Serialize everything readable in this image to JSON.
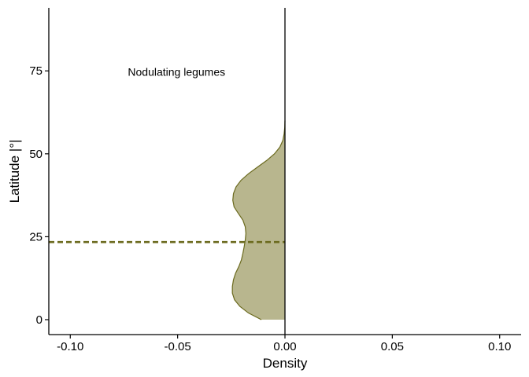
{
  "chart_data": {
    "type": "area",
    "orientation": "vertical-density",
    "xlabel": "Density",
    "ylabel": "Latitude |°|",
    "xlim": [
      -0.11,
      0.11
    ],
    "ylim": [
      -4.5,
      94
    ],
    "x_ticks": [
      {
        "value": -0.1,
        "label": "-0.10"
      },
      {
        "value": -0.05,
        "label": "-0.05"
      },
      {
        "value": 0.0,
        "label": "0.00"
      },
      {
        "value": 0.05,
        "label": "0.05"
      },
      {
        "value": 0.1,
        "label": "0.10"
      }
    ],
    "y_ticks": [
      {
        "value": 0,
        "label": "0"
      },
      {
        "value": 25,
        "label": "25"
      },
      {
        "value": 50,
        "label": "50"
      },
      {
        "value": 75,
        "label": "75"
      }
    ],
    "grid": false,
    "legend": "none",
    "annotation": {
      "text": "Nodulating legumes",
      "x": -0.0505,
      "y": 74.7
    },
    "reference_line": {
      "y": 23.4,
      "style": "dashed",
      "color": "#6b6a1e"
    },
    "zero_line_x": 0,
    "series": [
      {
        "fill": "#b8b68e",
        "stroke": "#6b6a1e",
        "points": [
          {
            "y": 0,
            "density": -0.011
          },
          {
            "y": 2,
            "density": -0.017
          },
          {
            "y": 4,
            "density": -0.021
          },
          {
            "y": 6,
            "density": -0.0235
          },
          {
            "y": 8,
            "density": -0.0245
          },
          {
            "y": 10,
            "density": -0.0245
          },
          {
            "y": 12,
            "density": -0.024
          },
          {
            "y": 14,
            "density": -0.023
          },
          {
            "y": 16,
            "density": -0.0215
          },
          {
            "y": 18,
            "density": -0.0203
          },
          {
            "y": 20,
            "density": -0.0196
          },
          {
            "y": 22,
            "density": -0.019
          },
          {
            "y": 24,
            "density": -0.0185
          },
          {
            "y": 26,
            "density": -0.0182
          },
          {
            "y": 28,
            "density": -0.0185
          },
          {
            "y": 30,
            "density": -0.0196
          },
          {
            "y": 32,
            "density": -0.0217
          },
          {
            "y": 34,
            "density": -0.0237
          },
          {
            "y": 36,
            "density": -0.0243
          },
          {
            "y": 38,
            "density": -0.024
          },
          {
            "y": 40,
            "density": -0.0228
          },
          {
            "y": 42,
            "density": -0.0205
          },
          {
            "y": 44,
            "density": -0.017
          },
          {
            "y": 46,
            "density": -0.0128
          },
          {
            "y": 48,
            "density": -0.0085
          },
          {
            "y": 50,
            "density": -0.0049
          },
          {
            "y": 52,
            "density": -0.0024
          },
          {
            "y": 54,
            "density": -0.001
          },
          {
            "y": 56,
            "density": -0.0004
          },
          {
            "y": 58,
            "density": -0.0001
          },
          {
            "y": 60,
            "density": 0
          }
        ]
      }
    ]
  }
}
